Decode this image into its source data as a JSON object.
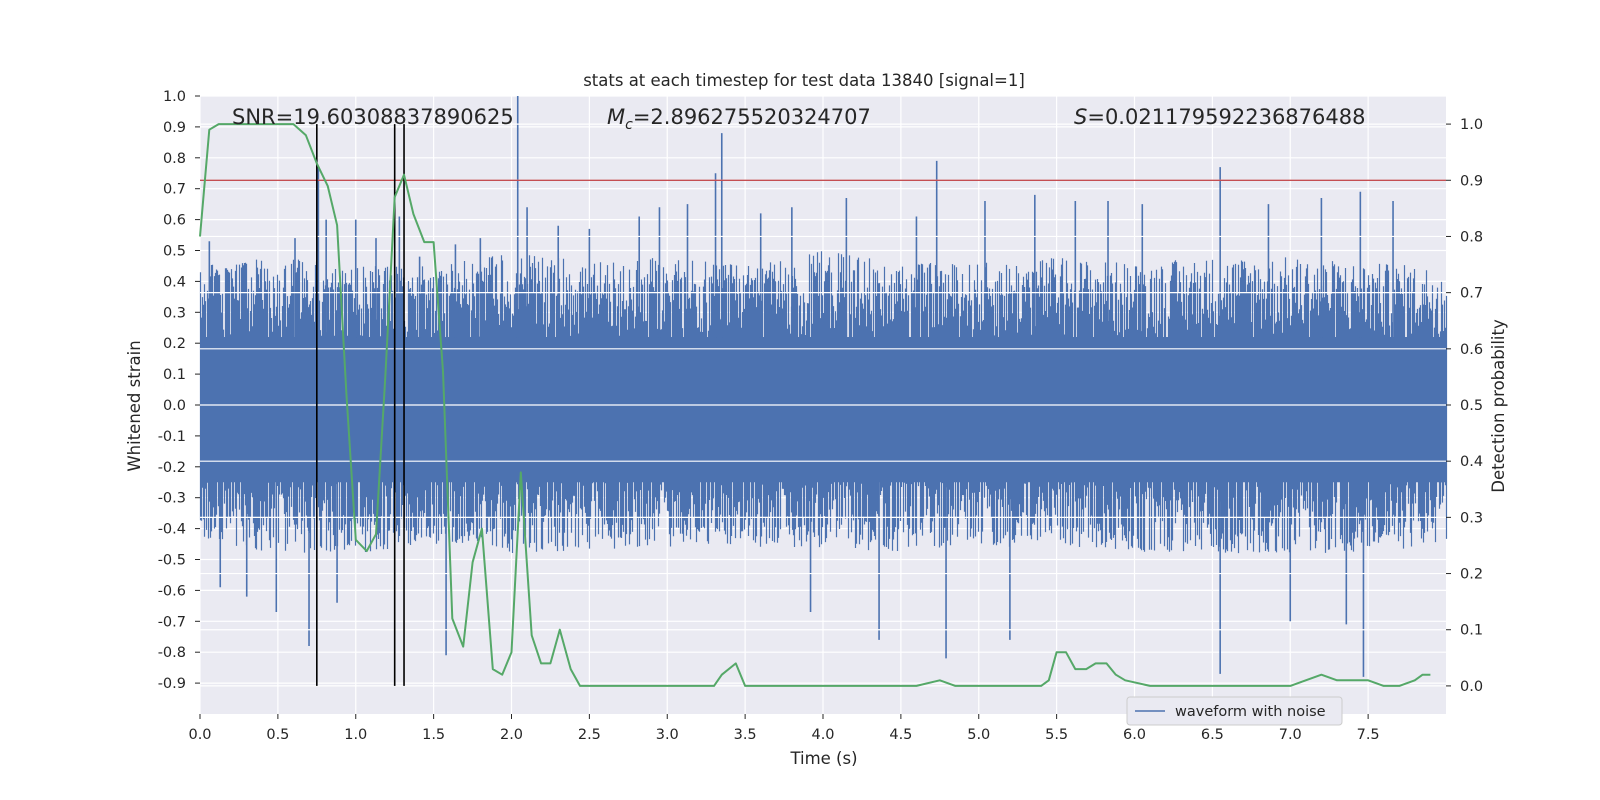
{
  "chart_data": {
    "type": "line",
    "title": "stats at each timestep for test data 13840 [signal=1]",
    "xlabel": "Time (s)",
    "ylabel_left": "Whitened strain",
    "ylabel_right": "Detection probability",
    "xlim": [
      0,
      8
    ],
    "ylim_left": [
      -1.0,
      1.0
    ],
    "ylim_right": [
      -0.05,
      1.05
    ],
    "grid": true,
    "legend_position": "lower-right",
    "x_ticks": [
      "0.0",
      "0.5",
      "1.0",
      "1.5",
      "2.0",
      "2.5",
      "3.0",
      "3.5",
      "4.0",
      "4.5",
      "5.0",
      "5.5",
      "6.0",
      "6.5",
      "7.0",
      "7.5"
    ],
    "y_ticks_left": [
      "1.0",
      "0.9",
      "0.8",
      "0.7",
      "0.6",
      "0.5",
      "0.4",
      "0.3",
      "0.2",
      "0.1",
      "0.0",
      "-0.1",
      "-0.2",
      "-0.3",
      "-0.4",
      "-0.5",
      "-0.6",
      "-0.7",
      "-0.8",
      "-0.9"
    ],
    "y_ticks_right": [
      "1.0",
      "0.9",
      "0.8",
      "0.7",
      "0.6",
      "0.5",
      "0.4",
      "0.3",
      "0.2",
      "0.1",
      "0.0"
    ],
    "annotations": [
      {
        "label": "SNR=19.60308837890625"
      },
      {
        "symbol": "M",
        "subscript": "c",
        "value": "=2.896275520324707"
      },
      {
        "symbol": "S",
        "value": "=0.021179592236876488"
      }
    ],
    "threshold": {
      "axis": "right",
      "y": 0.9,
      "color": "#c44e52"
    },
    "vlines": {
      "x": [
        0.75,
        1.25,
        1.31
      ],
      "ymin": 0.0,
      "ymax": 1.0,
      "axis": "right",
      "color": "#000000"
    },
    "series": [
      {
        "name": "waveform with noise",
        "axis": "left",
        "color": "#4c72b0",
        "description_fs": 2048,
        "envelope_points_time": [
          0.0,
          0.5,
          1.0,
          1.5,
          2.0,
          2.5,
          3.0,
          3.5,
          4.0,
          4.5,
          5.0,
          5.5,
          6.0,
          6.5,
          7.0,
          7.5,
          8.0
        ],
        "envelope_upper": [
          0.45,
          0.48,
          0.45,
          0.45,
          0.5,
          0.46,
          0.48,
          0.45,
          0.5,
          0.46,
          0.46,
          0.48,
          0.46,
          0.48,
          0.48,
          0.46,
          0.45
        ],
        "envelope_lower": [
          -0.45,
          -0.48,
          -0.48,
          -0.45,
          -0.48,
          -0.48,
          -0.46,
          -0.46,
          -0.46,
          -0.48,
          -0.46,
          -0.46,
          -0.48,
          -0.48,
          -0.48,
          -0.48,
          -0.45
        ],
        "peaks": [
          {
            "x": 0.06,
            "y": 0.53
          },
          {
            "x": 0.13,
            "y": -0.59
          },
          {
            "x": 0.3,
            "y": -0.62
          },
          {
            "x": 0.49,
            "y": -0.67
          },
          {
            "x": 0.61,
            "y": 0.54
          },
          {
            "x": 0.7,
            "y": -0.78
          },
          {
            "x": 0.76,
            "y": 0.77
          },
          {
            "x": 0.81,
            "y": 0.6
          },
          {
            "x": 0.88,
            "y": -0.64
          },
          {
            "x": 1.0,
            "y": 0.6
          },
          {
            "x": 1.13,
            "y": 0.54
          },
          {
            "x": 1.28,
            "y": 0.61
          },
          {
            "x": 1.41,
            "y": 0.48
          },
          {
            "x": 1.58,
            "y": -0.81
          },
          {
            "x": 1.64,
            "y": 0.52
          },
          {
            "x": 1.8,
            "y": 0.54
          },
          {
            "x": 2.04,
            "y": 1.0
          },
          {
            "x": 2.1,
            "y": 0.64
          },
          {
            "x": 2.3,
            "y": 0.58
          },
          {
            "x": 2.5,
            "y": 0.57
          },
          {
            "x": 2.82,
            "y": 0.61
          },
          {
            "x": 2.95,
            "y": 0.64
          },
          {
            "x": 3.13,
            "y": 0.65
          },
          {
            "x": 3.31,
            "y": 0.75
          },
          {
            "x": 3.35,
            "y": 0.88
          },
          {
            "x": 3.6,
            "y": 0.62
          },
          {
            "x": 3.8,
            "y": 0.64
          },
          {
            "x": 3.92,
            "y": -0.67
          },
          {
            "x": 4.15,
            "y": 0.67
          },
          {
            "x": 4.36,
            "y": -0.76
          },
          {
            "x": 4.6,
            "y": 0.61
          },
          {
            "x": 4.73,
            "y": 0.79
          },
          {
            "x": 4.79,
            "y": -0.82
          },
          {
            "x": 5.04,
            "y": 0.66
          },
          {
            "x": 5.2,
            "y": -0.76
          },
          {
            "x": 5.36,
            "y": 0.68
          },
          {
            "x": 5.62,
            "y": 0.66
          },
          {
            "x": 5.83,
            "y": 0.66
          },
          {
            "x": 6.05,
            "y": 0.65
          },
          {
            "x": 6.55,
            "y": 0.77
          },
          {
            "x": 6.55,
            "y": -0.87
          },
          {
            "x": 6.86,
            "y": 0.65
          },
          {
            "x": 7.0,
            "y": -0.7
          },
          {
            "x": 7.2,
            "y": 0.67
          },
          {
            "x": 7.36,
            "y": -0.71
          },
          {
            "x": 7.45,
            "y": 0.69
          },
          {
            "x": 7.47,
            "y": -0.88
          },
          {
            "x": 7.66,
            "y": 0.66
          }
        ]
      },
      {
        "axis": "right",
        "color": "#55a868",
        "x": [
          0.0,
          0.06,
          0.12,
          0.2,
          0.3,
          0.4,
          0.5,
          0.6,
          0.68,
          0.75,
          0.82,
          0.88,
          0.94,
          1.0,
          1.07,
          1.13,
          1.19,
          1.25,
          1.31,
          1.37,
          1.44,
          1.5,
          1.56,
          1.62,
          1.69,
          1.75,
          1.81,
          1.88,
          1.94,
          2.0,
          2.06,
          2.13,
          2.19,
          2.25,
          2.31,
          2.38,
          2.44,
          2.5,
          2.6,
          2.8,
          3.0,
          3.2,
          3.3,
          3.35,
          3.44,
          3.5,
          3.56,
          3.7,
          4.0,
          4.3,
          4.6,
          4.75,
          4.85,
          5.0,
          5.2,
          5.4,
          5.45,
          5.5,
          5.56,
          5.62,
          5.69,
          5.75,
          5.82,
          5.88,
          5.94,
          6.1,
          6.3,
          6.45,
          6.6,
          6.8,
          7.0,
          7.1,
          7.2,
          7.3,
          7.4,
          7.5,
          7.6,
          7.7,
          7.8,
          7.85,
          7.9
        ],
        "y": [
          0.8,
          0.99,
          1.0,
          1.0,
          1.0,
          1.0,
          1.0,
          1.0,
          0.98,
          0.93,
          0.89,
          0.82,
          0.52,
          0.26,
          0.24,
          0.27,
          0.55,
          0.87,
          0.91,
          0.84,
          0.79,
          0.79,
          0.56,
          0.12,
          0.07,
          0.22,
          0.28,
          0.03,
          0.02,
          0.06,
          0.38,
          0.09,
          0.04,
          0.04,
          0.1,
          0.03,
          0.0,
          0.0,
          0.0,
          0.0,
          0.0,
          0.0,
          0.0,
          0.02,
          0.04,
          0.0,
          0.0,
          0.0,
          0.0,
          0.0,
          0.0,
          0.01,
          0.0,
          0.0,
          0.0,
          0.0,
          0.01,
          0.06,
          0.06,
          0.03,
          0.03,
          0.04,
          0.04,
          0.02,
          0.01,
          0.0,
          0.0,
          0.0,
          0.0,
          0.0,
          0.0,
          0.01,
          0.02,
          0.01,
          0.01,
          0.01,
          0.0,
          0.0,
          0.01,
          0.02,
          0.02
        ]
      }
    ]
  }
}
